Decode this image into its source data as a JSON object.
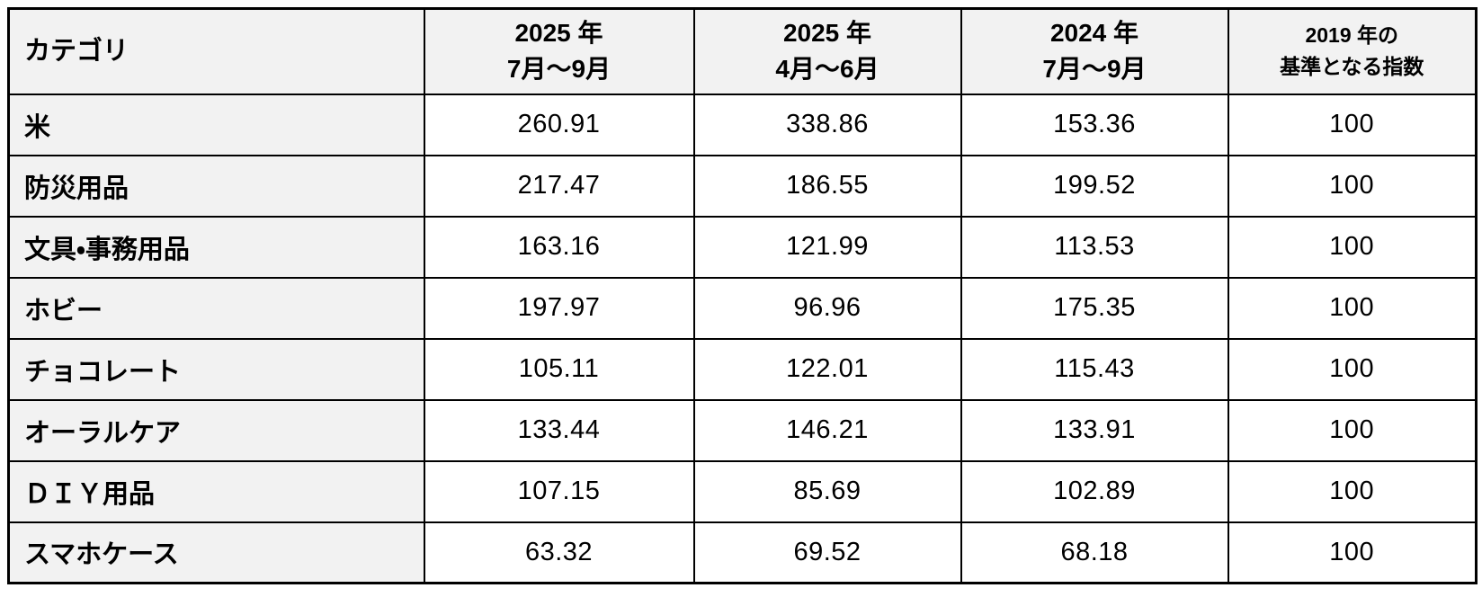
{
  "colors": {
    "header_bg": "#f2f2f2",
    "category_bg": "#f2f2f2",
    "cell_bg": "#ffffff",
    "border": "#000000",
    "text": "#000000"
  },
  "table": {
    "header": {
      "category": "カテゴリ",
      "cols": [
        {
          "l1": "2025 年",
          "l2": "7月～9月"
        },
        {
          "l1": "2025 年",
          "l2": "4月～6月"
        },
        {
          "l1": "2024 年",
          "l2": "7月～9月"
        },
        {
          "l1": "2019 年の",
          "l2": "基準となる指数"
        }
      ]
    },
    "rows": [
      {
        "category": "米",
        "v": [
          "260.91",
          "338.86",
          "153.36",
          "100"
        ]
      },
      {
        "category": "防災用品",
        "v": [
          "217.47",
          "186.55",
          "199.52",
          "100"
        ]
      },
      {
        "category": "文具・事務用品",
        "v": [
          "163.16",
          "121.99",
          "113.53",
          "100"
        ]
      },
      {
        "category": "ホビー",
        "v": [
          "197.97",
          "96.96",
          "175.35",
          "100"
        ]
      },
      {
        "category": "チョコレート",
        "v": [
          "105.11",
          "122.01",
          "115.43",
          "100"
        ]
      },
      {
        "category": "オーラルケア",
        "v": [
          "133.44",
          "146.21",
          "133.91",
          "100"
        ]
      },
      {
        "category": "ＤＩＹ用品",
        "v": [
          "107.15",
          "85.69",
          "102.89",
          "100"
        ]
      },
      {
        "category": "スマホケース",
        "v": [
          "63.32",
          "69.52",
          "68.18",
          "100"
        ]
      }
    ]
  },
  "chart_data": {
    "type": "table",
    "title": "",
    "columns": [
      "カテゴリ",
      "2025年7月～9月",
      "2025年4月～6月",
      "2024年7月～9月",
      "2019年の基準となる指数"
    ],
    "rows": [
      [
        "米",
        260.91,
        338.86,
        153.36,
        100
      ],
      [
        "防災用品",
        217.47,
        186.55,
        199.52,
        100
      ],
      [
        "文具・事務用品",
        163.16,
        121.99,
        113.53,
        100
      ],
      [
        "ホビー",
        197.97,
        96.96,
        175.35,
        100
      ],
      [
        "チョコレート",
        105.11,
        122.01,
        115.43,
        100
      ],
      [
        "オーラルケア",
        133.44,
        146.21,
        133.91,
        100
      ],
      [
        "ＤＩＹ用品",
        107.15,
        85.69,
        102.89,
        100
      ],
      [
        "スマホケース",
        63.32,
        69.52,
        68.18,
        100
      ]
    ]
  }
}
